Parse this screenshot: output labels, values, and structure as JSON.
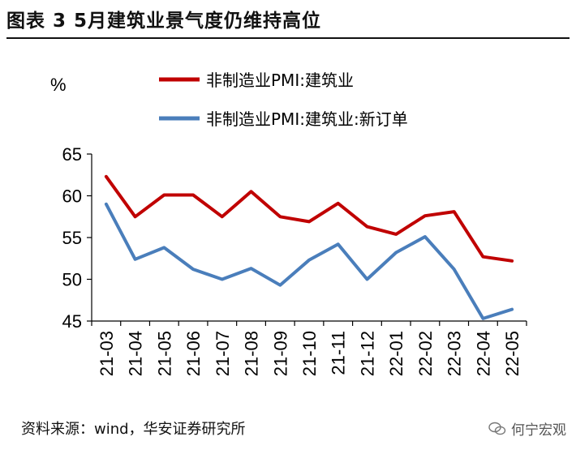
{
  "header": {
    "title": "图表 3 5月建筑业景气度仍维持高位"
  },
  "footer": {
    "source": "资料来源：wind，华安证券研究所",
    "watermark": "何宁宏观"
  },
  "chart_data": {
    "type": "line",
    "title": "图表 3 5月建筑业景气度仍维持高位",
    "ylabel": "%",
    "xlabel": "",
    "ylim": [
      45,
      65
    ],
    "yticks": [
      45,
      50,
      55,
      60,
      65
    ],
    "grid": false,
    "legend_position": "top",
    "categories": [
      "21-03",
      "21-04",
      "21-05",
      "21-06",
      "21-07",
      "21-08",
      "21-09",
      "21-10",
      "21-11",
      "21-12",
      "22-01",
      "22-02",
      "22-03",
      "22-04",
      "22-05"
    ],
    "series": [
      {
        "name": "非制造业PMI:建筑业",
        "color": "#c00000",
        "values": [
          62.3,
          57.5,
          60.1,
          60.1,
          57.5,
          60.5,
          57.5,
          56.9,
          59.1,
          56.3,
          55.4,
          57.6,
          58.1,
          52.7,
          52.2
        ]
      },
      {
        "name": "非制造业PMI:建筑业:新订单",
        "color": "#4a7ebb",
        "values": [
          59.0,
          52.4,
          53.8,
          51.2,
          50.0,
          51.3,
          49.3,
          52.3,
          54.2,
          50.0,
          53.2,
          55.1,
          51.2,
          45.3,
          46.4
        ]
      }
    ]
  }
}
